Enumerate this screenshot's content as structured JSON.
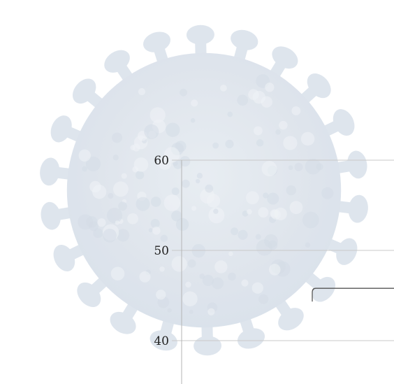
{
  "chart_data": {
    "type": "line",
    "title": "",
    "xlabel": "",
    "ylabel": "",
    "ylim": [
      37,
      62
    ],
    "y_ticks": [
      40,
      50,
      60
    ],
    "grid": true,
    "series": [
      {
        "values": [
          44.8,
          45.8,
          45.8,
          45.8
        ]
      }
    ],
    "colors": {
      "line": "#555555",
      "grid": "#c9c9c9",
      "axis": "#b5b5b5",
      "virus": "#dbe3ec"
    },
    "background_image": "coronavirus-illustration"
  }
}
